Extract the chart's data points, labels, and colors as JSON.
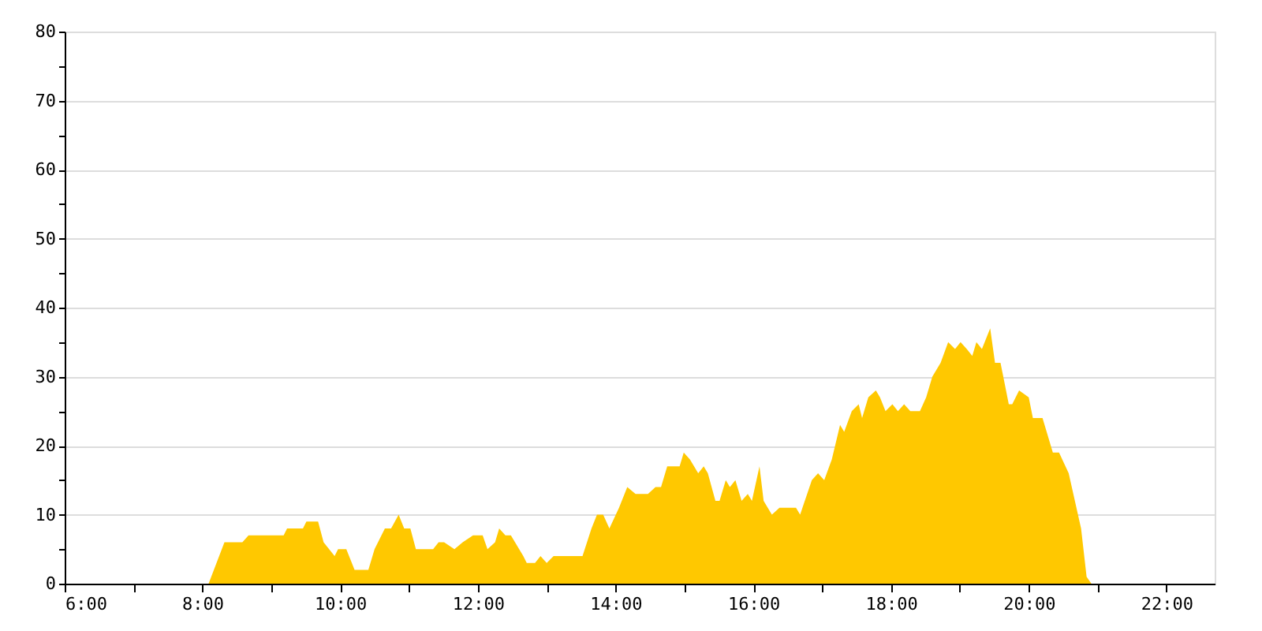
{
  "chart_data": {
    "type": "area",
    "xlim": [
      6,
      22.7
    ],
    "ylim": [
      0,
      80
    ],
    "xticks": [
      {
        "value": 6,
        "label": "6:00"
      },
      {
        "value": 7,
        "label": null
      },
      {
        "value": 8,
        "label": "8:00"
      },
      {
        "value": 9,
        "label": null
      },
      {
        "value": 10,
        "label": "10:00"
      },
      {
        "value": 11,
        "label": null
      },
      {
        "value": 12,
        "label": "12:00"
      },
      {
        "value": 13,
        "label": null
      },
      {
        "value": 14,
        "label": "14:00"
      },
      {
        "value": 15,
        "label": null
      },
      {
        "value": 16,
        "label": "16:00"
      },
      {
        "value": 17,
        "label": null
      },
      {
        "value": 18,
        "label": "18:00"
      },
      {
        "value": 19,
        "label": null
      },
      {
        "value": 20,
        "label": "20:00"
      },
      {
        "value": 21,
        "label": null
      },
      {
        "value": 22,
        "label": "22:00"
      }
    ],
    "yticks": [
      0,
      {
        "value": 5,
        "label": null
      },
      10,
      {
        "value": 15,
        "label": null
      },
      20,
      {
        "value": 25,
        "label": null
      },
      30,
      {
        "value": 35,
        "label": null
      },
      40,
      {
        "value": 45,
        "label": null
      },
      50,
      {
        "value": 55,
        "label": null
      },
      60,
      {
        "value": 65,
        "label": null
      },
      70,
      {
        "value": 75,
        "label": null
      },
      80
    ],
    "grid": "y",
    "series": [
      {
        "color": "#ffc800",
        "x": [
          8.09,
          8.32,
          8.58,
          8.67,
          9.18,
          9.23,
          9.46,
          9.51,
          9.68,
          9.76,
          9.92,
          9.97,
          10.09,
          10.21,
          10.41,
          10.5,
          10.65,
          10.74,
          10.85,
          10.93,
          11.02,
          11.1,
          11.35,
          11.43,
          11.51,
          11.66,
          11.78,
          11.93,
          12.07,
          12.14,
          12.25,
          12.31,
          12.4,
          12.48,
          12.66,
          12.71,
          12.83,
          12.91,
          13.0,
          13.1,
          13.52,
          13.65,
          13.73,
          13.82,
          13.91,
          14.05,
          14.17,
          14.29,
          14.47,
          14.58,
          14.66,
          14.75,
          14.93,
          14.99,
          15.08,
          15.2,
          15.28,
          15.34,
          15.45,
          15.51,
          15.6,
          15.66,
          15.74,
          15.83,
          15.92,
          15.98,
          16.09,
          16.15,
          16.27,
          16.38,
          16.62,
          16.68,
          16.85,
          16.94,
          17.03,
          17.14,
          17.26,
          17.32,
          17.43,
          17.53,
          17.58,
          17.67,
          17.78,
          17.84,
          17.92,
          18.02,
          18.1,
          18.19,
          18.28,
          18.42,
          18.51,
          18.6,
          18.72,
          18.83,
          18.93,
          19.01,
          19.1,
          19.18,
          19.24,
          19.32,
          19.44,
          19.51,
          19.59,
          19.71,
          19.76,
          19.86,
          20.0,
          20.06,
          20.2,
          20.35,
          20.44,
          20.58,
          20.76,
          20.84,
          20.91
        ],
        "values": [
          0,
          6,
          6,
          7,
          7,
          8,
          8,
          9,
          9,
          6,
          4,
          5,
          5,
          2,
          2,
          5,
          8,
          8,
          10,
          8,
          8,
          5,
          5,
          6,
          6,
          5,
          6,
          7,
          7,
          5,
          6,
          8,
          7,
          7,
          4,
          3,
          3,
          4,
          3,
          4,
          4,
          8,
          10,
          10,
          8,
          11,
          14,
          13,
          13,
          14,
          14,
          17,
          17,
          19,
          18,
          16,
          17,
          16,
          12,
          12,
          15,
          14,
          15,
          12,
          13,
          12,
          17,
          12,
          10,
          11,
          11,
          10,
          15,
          16,
          15,
          18,
          23,
          22,
          25,
          26,
          24,
          27,
          28,
          27,
          25,
          26,
          25,
          26,
          25,
          25,
          27,
          30,
          32,
          35,
          34,
          35,
          34,
          33,
          35,
          34,
          37,
          32,
          32,
          26,
          26,
          28,
          27,
          24,
          24,
          19,
          19,
          16,
          8,
          1,
          0
        ]
      }
    ]
  }
}
